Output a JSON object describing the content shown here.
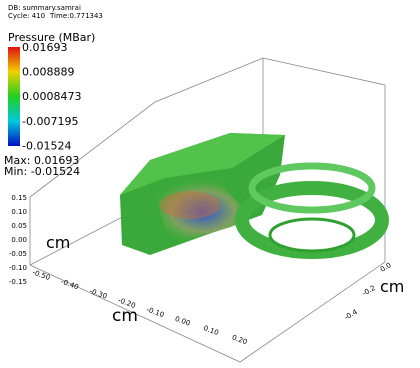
{
  "header": {
    "db": "DB: summary.samrai",
    "cycle": "Cycle: 410",
    "time": "Time:0.771343"
  },
  "legend": {
    "title": "Pressure (MBar)",
    "labels": [
      "0.01693",
      "0.008889",
      "0.0008473",
      "-0.007195",
      "-0.01524"
    ],
    "max": "Max:  0.01693",
    "min": "Min: -0.01524"
  },
  "axes": {
    "y": {
      "label": "cm",
      "ticks": [
        "0.15",
        "0.10",
        "0.05",
        "0.00",
        "-0.05",
        "-0.10",
        "-0.15"
      ]
    },
    "x": {
      "label": "cm",
      "ticks": [
        "-0.50",
        "-0.40",
        "-0.30",
        "-0.20",
        "-0.10",
        "0.00",
        "0.10",
        "0.20"
      ]
    },
    "z": {
      "label": "cm",
      "ticks": [
        "0.0",
        "-0.2",
        "-0.4"
      ]
    }
  }
}
